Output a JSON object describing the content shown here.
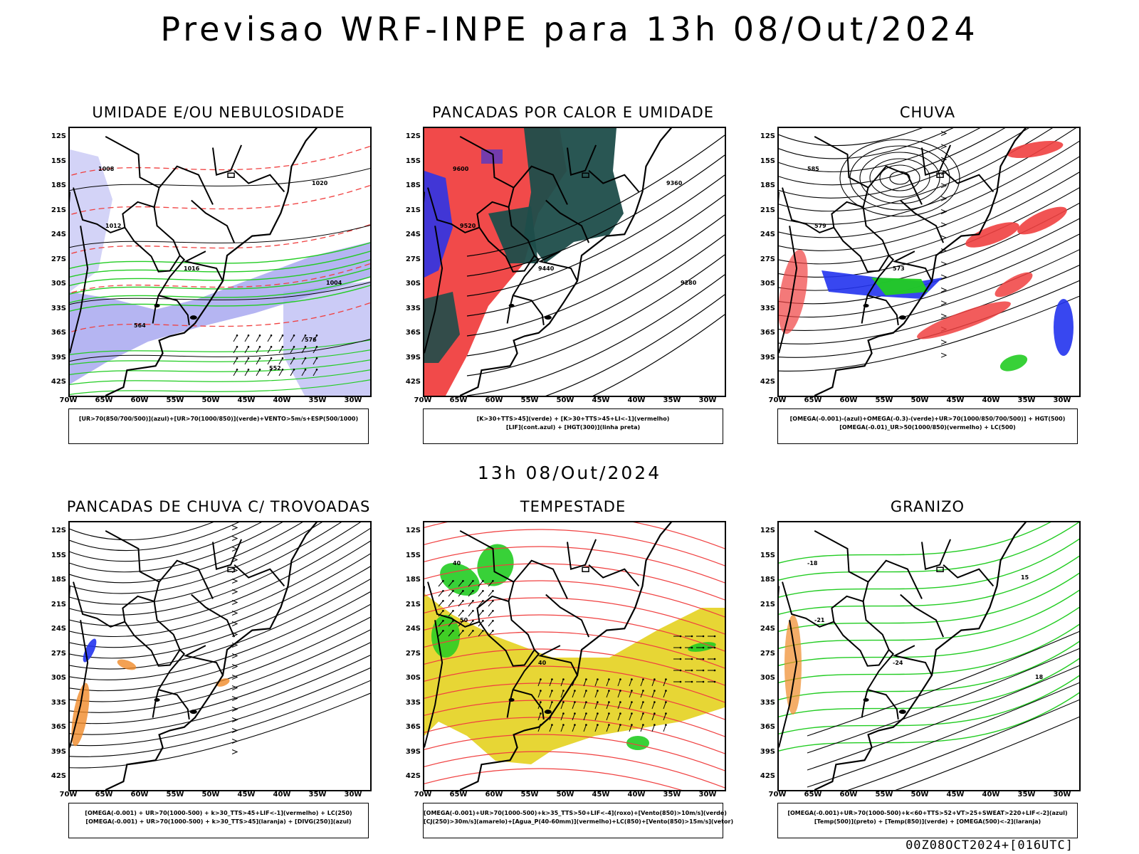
{
  "main_title": "Previsao WRF-INPE  para 13h 08/Out/2024",
  "mid_title": "13h 08/Out/2024",
  "footer": "00Z08OCT2024+[016UTC]",
  "lat_ticks": [
    "12S",
    "15S",
    "18S",
    "21S",
    "24S",
    "27S",
    "30S",
    "33S",
    "36S",
    "39S",
    "42S"
  ],
  "lon_ticks": [
    "70W",
    "65W",
    "60W",
    "55W",
    "50W",
    "45W",
    "40W",
    "35W",
    "30W"
  ],
  "colors": {
    "red": "#f04040",
    "green": "#22cc22",
    "blue": "#2233ee",
    "lavender": "#a8a8f0",
    "dark_teal": "#1e4d4a",
    "yellow": "#e6d42a",
    "orange": "#f08a28"
  },
  "panels": [
    {
      "title": "UMIDADE E/OU NEBULOSIDADE",
      "legend": [
        "[UR>70(850/700/500)](azul)+[UR>70(1000/850)](verde)+VENTO>5m/s+ESP(500/1000)"
      ],
      "labels": [
        "1008",
        "1012",
        "1016",
        "1020",
        "1004",
        "576",
        "564",
        "552"
      ]
    },
    {
      "title": "PANCADAS POR CALOR E UMIDADE",
      "legend": [
        "[K>30+TTS>45](verde)  +  [K>30+TTS>45+LI<-1](vermelho)",
        "[LIF](cont.azul)  +  [HGT(300)](linha preta)"
      ],
      "labels": [
        "9600",
        "9520",
        "9440",
        "9360",
        "9280"
      ]
    },
    {
      "title": "CHUVA",
      "legend": [
        "[OMEGA(-0.001)-(azul)+OMEGA(-0.3)-(verde)+UR>70(1000/850/700/500)]  +  HGT(500)",
        "[OMEGA(-0.01)_UR>50(1000/850)(vermelho)  +  LC(500)"
      ],
      "labels": [
        "585",
        "579",
        "573"
      ]
    },
    {
      "title": "PANCADAS DE CHUVA C/ TROVOADAS",
      "legend": [
        "[OMEGA(-0.001)  +  UR>70(1000-500)  +  k>30_TTS>45+LIF<-1](vermelho)  +  LC(250)",
        "[OMEGA(-0.001)  +  UR>70(1000-500)  +  k>30_TTS>45](laranja)  +  [DIVG(250)](azul)"
      ],
      "labels": []
    },
    {
      "title": "TEMPESTADE",
      "legend": [
        "[OMEGA(-0.001)+UR>70(1000-500)+k>35_TTS>50+LIF<-4](roxo)+[Vento(850)>10m/s](verde)",
        "[CJ(250)>30m/s](amarelo)+[Agua_P(40-60mm)](vermelho)+LC(850)+[Vento(850)>15m/s](vetor)"
      ],
      "labels": [
        "40",
        "50",
        "40"
      ]
    },
    {
      "title": "GRANIZO",
      "legend": [
        "[OMEGA(-0.001)+UR>70(1000-500)+k<60+TTS>52+VT>25+SWEAT>220+LIF<-2](azul)",
        "[Temp(500)](preto)  +  [Temp(850)](verde)  +  [OMEGA(500)<-2](laranja)"
      ],
      "labels": [
        "-18",
        "-21",
        "-24",
        "15",
        "18"
      ]
    }
  ]
}
